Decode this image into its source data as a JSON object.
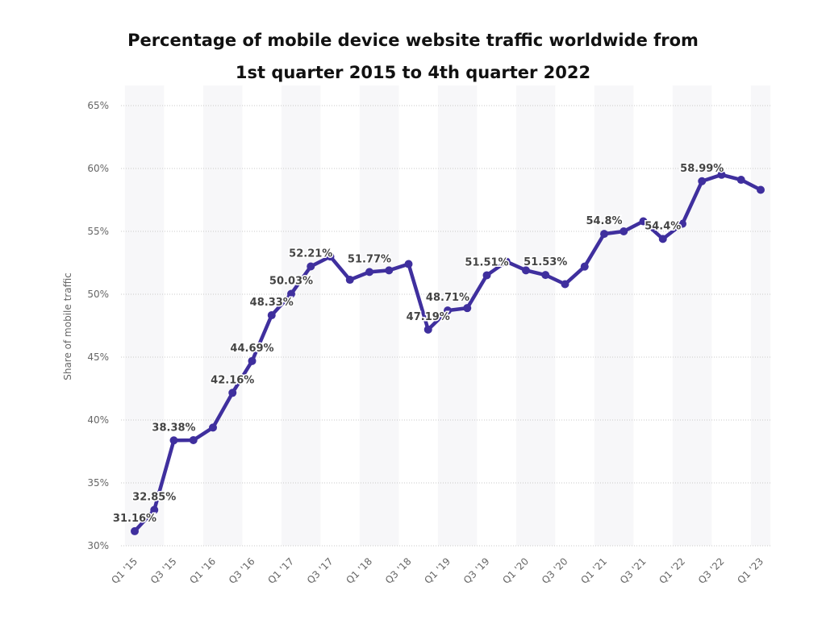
{
  "chart_data": {
    "type": "line",
    "title_line1": "Percentage of mobile device website traffic worldwide from",
    "title_line2": "1st quarter 2015 to 4th quarter 2022",
    "xlabel": "",
    "ylabel": "Share of mobile traffic",
    "ylim": [
      30,
      65
    ],
    "yticks": [
      "30%",
      "35%",
      "40%",
      "45%",
      "50%",
      "55%",
      "60%",
      "65%"
    ],
    "grid": true,
    "color": "#3f2f9e",
    "x": [
      "Q1 '15",
      "Q2 '15",
      "Q3 '15",
      "Q4 '15",
      "Q1 '16",
      "Q2 '16",
      "Q3 '16",
      "Q4 '16",
      "Q1 '17",
      "Q2 '17",
      "Q3 '17",
      "Q4 '17",
      "Q1 '18",
      "Q2 '18",
      "Q3 '18",
      "Q4 '18",
      "Q1 '19",
      "Q2 '19",
      "Q3 '19",
      "Q4 '19",
      "Q1 '20",
      "Q2 '20",
      "Q3 '20",
      "Q4 '20",
      "Q1 '21",
      "Q2 '21",
      "Q3 '21",
      "Q4 '21",
      "Q1 '22",
      "Q2 '22",
      "Q3 '22",
      "Q4 '22",
      "Q1 '23"
    ],
    "xtick_labels": [
      "Q1 '15",
      "Q3 '15",
      "Q1 '16",
      "Q3 '16",
      "Q1 '17",
      "Q3 '17",
      "Q1 '18",
      "Q3 '18",
      "Q1 '19",
      "Q3 '19",
      "Q1 '20",
      "Q3 '20",
      "Q1 '21",
      "Q3 '21",
      "Q1 '22",
      "Q3 '22",
      "Q1 '23"
    ],
    "values": [
      31.16,
      32.85,
      38.38,
      38.4,
      39.4,
      42.16,
      44.69,
      48.33,
      50.03,
      52.21,
      53.0,
      51.15,
      51.77,
      51.9,
      52.4,
      47.19,
      48.71,
      48.9,
      51.51,
      52.6,
      51.9,
      51.53,
      50.8,
      52.2,
      54.8,
      55.0,
      55.8,
      54.4,
      55.6,
      58.99,
      59.5,
      59.1,
      58.3
    ],
    "data_labels": [
      {
        "index": 0,
        "text": "31.16%"
      },
      {
        "index": 1,
        "text": "32.85%"
      },
      {
        "index": 2,
        "text": "38.38%"
      },
      {
        "index": 5,
        "text": "42.16%"
      },
      {
        "index": 6,
        "text": "44.69%"
      },
      {
        "index": 7,
        "text": "48.33%"
      },
      {
        "index": 8,
        "text": "50.03%"
      },
      {
        "index": 9,
        "text": "52.21%"
      },
      {
        "index": 12,
        "text": "51.77%"
      },
      {
        "index": 15,
        "text": "47.19%"
      },
      {
        "index": 16,
        "text": "48.71%"
      },
      {
        "index": 18,
        "text": "51.51%"
      },
      {
        "index": 21,
        "text": "51.53%"
      },
      {
        "index": 24,
        "text": "54.8%"
      },
      {
        "index": 27,
        "text": "54.4%"
      },
      {
        "index": 29,
        "text": "58.99%"
      }
    ]
  }
}
